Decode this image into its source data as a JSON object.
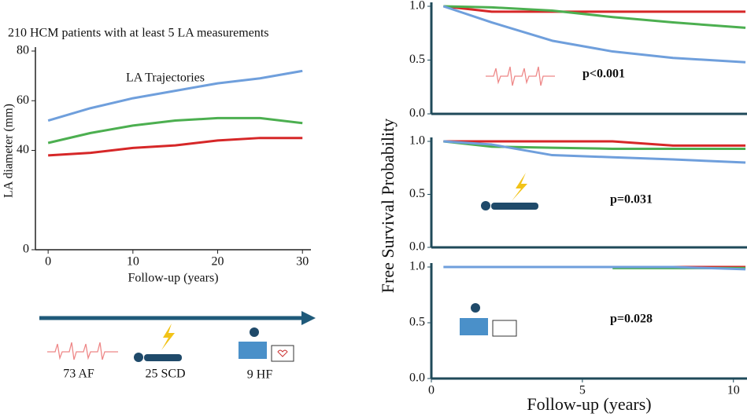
{
  "title": "210 HCM patients with at least 5 LA measurements",
  "timeline": {
    "events": [
      "73 AF",
      "25 SCD",
      "9 HF"
    ]
  },
  "chart_data": [
    {
      "type": "line",
      "title": "LA Trajectories",
      "xlabel": "Follow-up (years)",
      "ylabel": "LA diameter (mm)",
      "x": [
        0,
        5,
        10,
        15,
        20,
        25,
        30
      ],
      "series": [
        {
          "color": "#6f9fdc",
          "values": [
            52,
            57,
            61,
            64,
            67,
            69,
            72
          ]
        },
        {
          "color": "#4caf50",
          "values": [
            43,
            47,
            50,
            52,
            53,
            53,
            51
          ]
        },
        {
          "color": "#d62728",
          "values": [
            38,
            39,
            41,
            42,
            44,
            45,
            45
          ]
        }
      ],
      "xlim": [
        -1.5,
        31
      ],
      "ylim": [
        0,
        80
      ],
      "xticks": [
        0,
        10,
        20,
        30
      ],
      "yticks": [
        0,
        40,
        60,
        80
      ]
    },
    {
      "type": "line",
      "annotation": "p<0.001",
      "ylabel": "Free Survival Probability",
      "x": [
        0.4,
        2,
        4,
        6,
        8,
        10.4
      ],
      "series": [
        {
          "color": "#d62728",
          "values": [
            1.0,
            0.95,
            0.95,
            0.95,
            0.95,
            0.95
          ]
        },
        {
          "color": "#4caf50",
          "values": [
            1.0,
            0.99,
            0.96,
            0.9,
            0.85,
            0.8
          ]
        },
        {
          "color": "#6f9fdc",
          "values": [
            1.0,
            0.85,
            0.68,
            0.58,
            0.52,
            0.48
          ]
        }
      ],
      "xlim": [
        0,
        10.45
      ],
      "ylim": [
        0,
        1
      ],
      "yticks": [
        {
          "value": 0,
          "label": "0.0"
        },
        0.5,
        {
          "value": 1,
          "label": "1.0"
        }
      ]
    },
    {
      "type": "line",
      "annotation": "p=0.031",
      "x": [
        0.4,
        2,
        4,
        6,
        8,
        10.4
      ],
      "series": [
        {
          "color": "#d62728",
          "values": [
            1.0,
            1.0,
            1.0,
            1.0,
            0.96,
            0.96
          ]
        },
        {
          "color": "#4caf50",
          "values": [
            1.0,
            0.95,
            0.94,
            0.93,
            0.93,
            0.93
          ]
        },
        {
          "color": "#6f9fdc",
          "values": [
            1.0,
            0.97,
            0.87,
            0.85,
            0.83,
            0.8
          ]
        }
      ],
      "xlim": [
        0,
        10.45
      ],
      "ylim": [
        0,
        1
      ],
      "yticks": [
        {
          "value": 0,
          "label": "0.0"
        },
        0.5,
        {
          "value": 1,
          "label": "1.0"
        }
      ]
    },
    {
      "type": "line",
      "annotation": "p=0.028",
      "xlabel": "Follow-up (years)",
      "x": [
        0.4,
        2,
        4,
        6,
        8,
        10.4
      ],
      "series": [
        {
          "color": "#d62728",
          "values": [
            null,
            null,
            null,
            null,
            1.0,
            1.0
          ]
        },
        {
          "color": "#4caf50",
          "values": [
            null,
            null,
            null,
            0.99,
            0.99,
            0.99
          ]
        },
        {
          "color": "#6f9fdc",
          "values": [
            1.0,
            1.0,
            1.0,
            1.0,
            1.0,
            0.98
          ]
        }
      ],
      "xlim": [
        0,
        10.45
      ],
      "ylim": [
        0,
        1
      ],
      "xticks": [
        0,
        5,
        10
      ],
      "yticks": [
        {
          "value": 0,
          "label": "0.0"
        },
        0.5,
        {
          "value": 1,
          "label": "1.0"
        }
      ]
    }
  ]
}
